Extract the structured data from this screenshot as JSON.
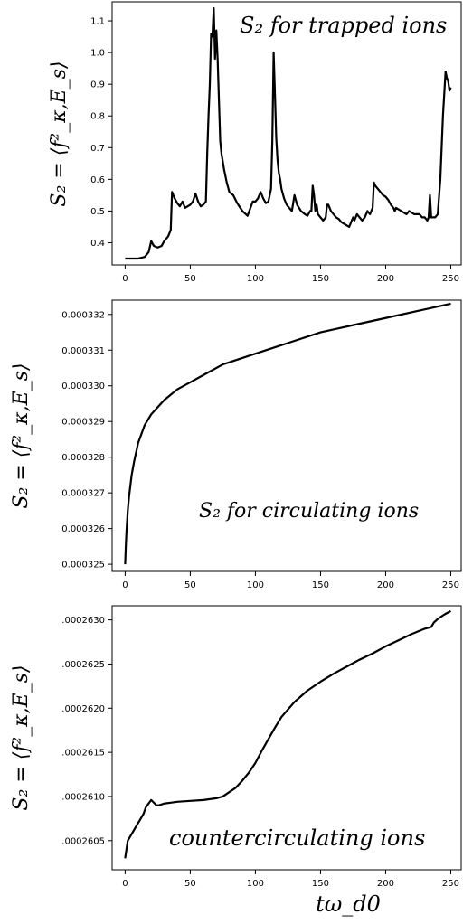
{
  "x_axis_label": "tω_d0",
  "chart_data": [
    {
      "type": "line",
      "annotation": "S₂ for trapped ions",
      "ylabel": "S₂ = ⟨f²_κ,E_s⟩",
      "xlim": [
        -10,
        258
      ],
      "ylim": [
        0.33,
        1.16
      ],
      "xticks": [
        0,
        50,
        100,
        150,
        200,
        250
      ],
      "xtick_labels": [
        "0",
        "50",
        "100",
        "150",
        "200",
        "250"
      ],
      "yticks": [
        0.4,
        0.5,
        0.6,
        0.7,
        0.8,
        0.9,
        1.0,
        1.1
      ],
      "ytick_labels": [
        "0.4",
        "0.5",
        "0.6",
        "0.7",
        "0.8",
        "0.9",
        "1.0",
        "1.1"
      ],
      "series": [
        {
          "x": [
            0,
            10,
            15,
            18,
            20,
            22,
            25,
            28,
            30,
            33,
            35,
            36,
            38,
            40,
            42,
            44,
            46,
            48,
            50,
            52,
            54,
            56,
            58,
            60,
            62,
            63,
            64,
            65,
            66,
            67,
            68,
            69,
            70,
            71,
            72,
            73,
            74,
            76,
            78,
            80,
            83,
            86,
            90,
            94,
            98,
            100,
            102,
            104,
            106,
            108,
            110,
            112,
            113,
            114,
            115,
            116,
            117,
            118,
            119,
            120,
            122,
            124,
            126,
            128,
            130,
            132,
            135,
            138,
            140,
            142,
            143,
            144,
            145,
            146,
            147,
            148,
            150,
            152,
            154,
            155,
            156,
            158,
            160,
            162,
            164,
            166,
            168,
            170,
            172,
            174,
            175,
            176,
            178,
            180,
            182,
            184,
            186,
            188,
            190,
            191,
            192,
            194,
            196,
            198,
            200,
            202,
            204,
            206,
            207,
            208,
            210,
            212,
            214,
            216,
            218,
            220,
            222,
            224,
            226,
            228,
            230,
            232,
            233,
            234,
            235,
            236,
            238,
            240,
            242,
            244,
            246,
            247,
            248,
            249,
            250
          ],
          "y": [
            0.35,
            0.35,
            0.355,
            0.37,
            0.405,
            0.39,
            0.385,
            0.39,
            0.405,
            0.42,
            0.44,
            0.56,
            0.54,
            0.525,
            0.515,
            0.53,
            0.51,
            0.515,
            0.52,
            0.53,
            0.555,
            0.53,
            0.515,
            0.52,
            0.53,
            0.68,
            0.8,
            0.9,
            1.06,
            1.05,
            1.14,
            0.98,
            1.07,
            0.98,
            0.85,
            0.72,
            0.68,
            0.63,
            0.59,
            0.56,
            0.55,
            0.525,
            0.5,
            0.485,
            0.53,
            0.53,
            0.54,
            0.56,
            0.54,
            0.525,
            0.53,
            0.57,
            0.72,
            1.0,
            0.87,
            0.73,
            0.66,
            0.62,
            0.6,
            0.57,
            0.54,
            0.52,
            0.51,
            0.5,
            0.55,
            0.52,
            0.5,
            0.49,
            0.485,
            0.5,
            0.5,
            0.58,
            0.55,
            0.5,
            0.52,
            0.49,
            0.48,
            0.47,
            0.48,
            0.52,
            0.52,
            0.5,
            0.49,
            0.48,
            0.475,
            0.465,
            0.46,
            0.455,
            0.45,
            0.47,
            0.48,
            0.47,
            0.49,
            0.48,
            0.47,
            0.48,
            0.5,
            0.49,
            0.51,
            0.59,
            0.58,
            0.57,
            0.56,
            0.55,
            0.545,
            0.535,
            0.52,
            0.51,
            0.5,
            0.51,
            0.505,
            0.5,
            0.495,
            0.49,
            0.5,
            0.495,
            0.49,
            0.49,
            0.49,
            0.48,
            0.48,
            0.47,
            0.48,
            0.55,
            0.48,
            0.48,
            0.48,
            0.49,
            0.6,
            0.8,
            0.94,
            0.92,
            0.91,
            0.88,
            0.89
          ]
        }
      ]
    },
    {
      "type": "line",
      "annotation": "S₂ for circulating ions",
      "ylabel": "S₂ = ⟨f²_κ,E_s⟩",
      "xlim": [
        -10,
        258
      ],
      "ylim": [
        0.0003248,
        0.0003324
      ],
      "xticks": [
        0,
        50,
        100,
        150,
        200,
        250
      ],
      "xtick_labels": [
        "0",
        "50",
        "100",
        "150",
        "200",
        "250"
      ],
      "yticks": [
        0.000325,
        0.000326,
        0.000327,
        0.000328,
        0.000329,
        0.00033,
        0.000331,
        0.000332
      ],
      "ytick_labels": [
        "0.000325",
        "0.000326",
        "0.000327",
        "0.000328",
        "0.000329",
        "0.000330",
        "0.000331",
        "0.000332"
      ],
      "series": [
        {
          "x": [
            0,
            0.5,
            1,
            2,
            3,
            4,
            5,
            7,
            10,
            15,
            20,
            25,
            30,
            40,
            50,
            60,
            75,
            100,
            125,
            150,
            175,
            200,
            225,
            250
          ],
          "y": [
            0.000325,
            0.0003255,
            0.0003259,
            0.0003265,
            0.0003269,
            0.0003272,
            0.0003275,
            0.0003279,
            0.0003284,
            0.0003289,
            0.0003292,
            0.0003294,
            0.0003296,
            0.0003299,
            0.0003301,
            0.0003303,
            0.0003306,
            0.0003309,
            0.0003312,
            0.0003315,
            0.0003317,
            0.0003319,
            0.0003321,
            0.0003323
          ]
        }
      ]
    },
    {
      "type": "line",
      "annotation": "countercirculating ions",
      "ylabel": "S₂ = ⟨f²_κ,E_s⟩",
      "xlim": [
        -10,
        258
      ],
      "ylim": [
        0.00026017,
        0.00026316
      ],
      "xticks": [
        0,
        50,
        100,
        150,
        200,
        250
      ],
      "xtick_labels": [
        "0",
        "50",
        "100",
        "150",
        "200",
        "250"
      ],
      "yticks": [
        0.0002605,
        0.000261,
        0.0002615,
        0.000262,
        0.0002625,
        0.000263
      ],
      "ytick_labels": [
        ".0002605",
        ".0002610",
        ".0002615",
        ".0002620",
        ".0002625",
        ".0002630"
      ],
      "series": [
        {
          "x": [
            0,
            1,
            2,
            4,
            6,
            8,
            10,
            12,
            14,
            16,
            18,
            20,
            22,
            24,
            26,
            30,
            35,
            40,
            50,
            60,
            70,
            75,
            80,
            85,
            90,
            95,
            100,
            105,
            110,
            115,
            120,
            130,
            140,
            150,
            160,
            170,
            180,
            190,
            200,
            210,
            220,
            230,
            235,
            237,
            240,
            245,
            250
          ],
          "y": [
            0.0002603,
            0.0002604,
            0.0002605,
            0.00026055,
            0.0002606,
            0.00026065,
            0.0002607,
            0.00026075,
            0.0002608,
            0.00026088,
            0.00026092,
            0.00026096,
            0.00026093,
            0.0002609,
            0.0002609,
            0.00026092,
            0.00026093,
            0.00026094,
            0.00026095,
            0.00026096,
            0.00026098,
            0.000261,
            0.00026105,
            0.0002611,
            0.00026118,
            0.00026127,
            0.00026138,
            0.00026152,
            0.00026165,
            0.00026178,
            0.0002619,
            0.00026207,
            0.0002622,
            0.0002623,
            0.00026239,
            0.00026247,
            0.00026255,
            0.00026262,
            0.0002627,
            0.00026277,
            0.00026284,
            0.0002629,
            0.00026292,
            0.00026297,
            0.00026301,
            0.00026306,
            0.0002631
          ]
        }
      ]
    }
  ]
}
